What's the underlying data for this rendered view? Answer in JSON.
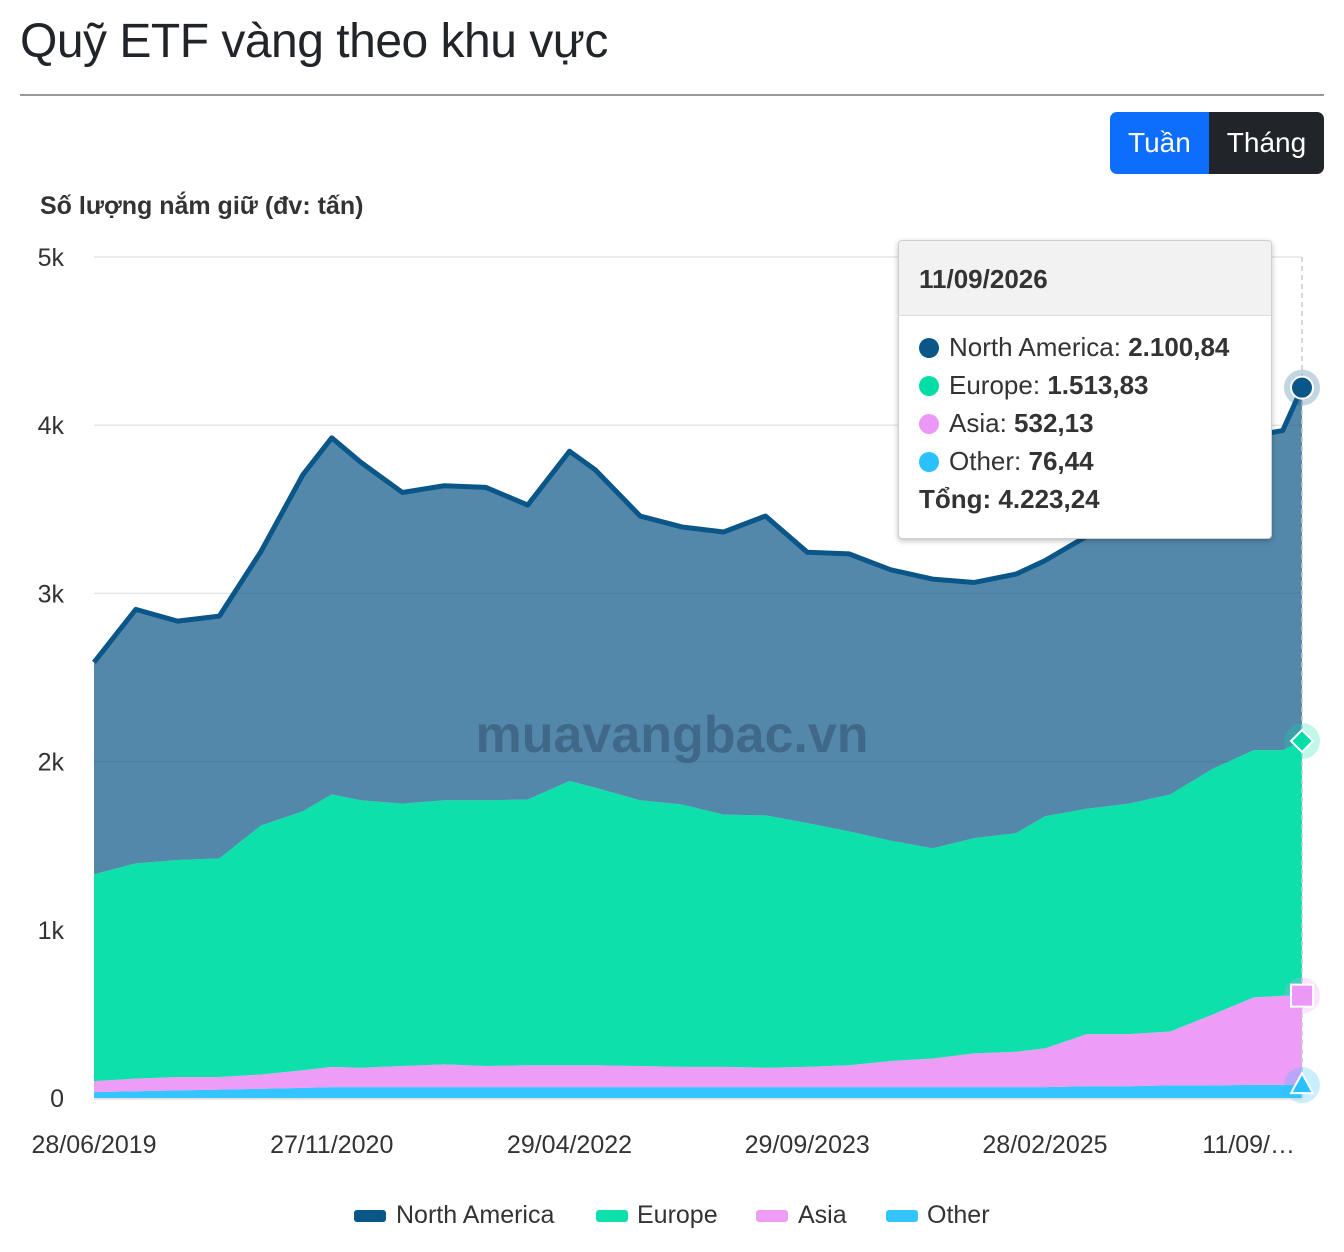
{
  "header": {
    "title": "Quỹ ETF vàng theo khu vực"
  },
  "period_toggle": {
    "week_label": "Tuần",
    "month_label": "Tháng",
    "active": "Tuần"
  },
  "watermark": "muavangbac.vn",
  "tooltip": {
    "date": "11/09/2026",
    "rows": [
      {
        "label": "North America:",
        "value": "2.100,84",
        "color": "#0b5688"
      },
      {
        "label": "Europe:",
        "value": "1.513,83",
        "color": "#00dea6"
      },
      {
        "label": "Asia:",
        "value": "532,13",
        "color": "#ec98f6"
      },
      {
        "label": "Other:",
        "value": "76,44",
        "color": "#29c1ff"
      }
    ],
    "total_label": "Tổng:",
    "total_value": "4.223,24"
  },
  "chart_data": {
    "type": "area",
    "stacked": true,
    "title": "Quỹ ETF vàng theo khu vực",
    "ylabel": "Số lượng nắm giữ (đv: tấn)",
    "xlabel": "",
    "ylim": [
      0,
      5000
    ],
    "y_ticks": [
      0,
      1000,
      2000,
      3000,
      4000,
      5000
    ],
    "y_tick_labels": [
      "0",
      "1k",
      "2k",
      "3k",
      "4k",
      "5k"
    ],
    "x_range": [
      "2019-06-28",
      "2026-09-11"
    ],
    "x_ticks": [
      "2019-06-28",
      "2020-11-27",
      "2022-04-29",
      "2023-09-29",
      "2025-02-28",
      "2026-09-11"
    ],
    "x_tick_labels": [
      "28/06/2019",
      "27/11/2020",
      "29/04/2022",
      "29/09/2023",
      "28/02/2025",
      "11/09/…"
    ],
    "legend_position": "bottom",
    "grid": true,
    "dates": [
      "2019-06-28",
      "2019-09-27",
      "2019-12-27",
      "2020-03-27",
      "2020-06-26",
      "2020-09-25",
      "2020-11-27",
      "2021-01-29",
      "2021-04-30",
      "2021-07-30",
      "2021-10-29",
      "2022-01-28",
      "2022-04-29",
      "2022-06-24",
      "2022-09-30",
      "2022-12-30",
      "2023-03-31",
      "2023-06-30",
      "2023-09-29",
      "2023-12-29",
      "2024-03-29",
      "2024-06-28",
      "2024-09-27",
      "2024-12-27",
      "2025-02-28",
      "2025-05-30",
      "2025-08-29",
      "2025-11-28",
      "2026-02-27",
      "2026-05-29",
      "2026-07-31",
      "2026-09-11"
    ],
    "series": [
      {
        "name": "Other",
        "color": "#29c1ff",
        "values": [
          35,
          40,
          45,
          50,
          55,
          60,
          65,
          65,
          65,
          65,
          65,
          65,
          65,
          65,
          65,
          65,
          65,
          65,
          65,
          65,
          65,
          65,
          65,
          65,
          65,
          70,
          70,
          75,
          75,
          78,
          78,
          76.44
        ]
      },
      {
        "name": "Asia",
        "color": "#ec98f6",
        "values": [
          65,
          75,
          80,
          75,
          85,
          105,
          120,
          115,
          125,
          135,
          125,
          130,
          130,
          130,
          125,
          120,
          120,
          115,
          120,
          130,
          155,
          170,
          200,
          210,
          230,
          310,
          310,
          320,
          420,
          520,
          530,
          532.13
        ]
      },
      {
        "name": "Europe",
        "color": "#00dea6",
        "values": [
          1230,
          1280,
          1290,
          1300,
          1480,
          1540,
          1620,
          1590,
          1560,
          1570,
          1580,
          1580,
          1690,
          1650,
          1580,
          1560,
          1500,
          1500,
          1450,
          1390,
          1310,
          1250,
          1280,
          1300,
          1380,
          1340,
          1370,
          1410,
          1460,
          1470,
          1460,
          1513.83
        ]
      },
      {
        "name": "North America",
        "color": "#0b5688",
        "values": [
          1260,
          1510,
          1420,
          1440,
          1630,
          2000,
          2120,
          2010,
          1850,
          1870,
          1860,
          1750,
          1960,
          1890,
          1690,
          1650,
          1680,
          1780,
          1610,
          1650,
          1610,
          1600,
          1520,
          1540,
          1520,
          1620,
          1830,
          1960,
          1930,
          1870,
          1900,
          2100.84
        ]
      }
    ]
  }
}
